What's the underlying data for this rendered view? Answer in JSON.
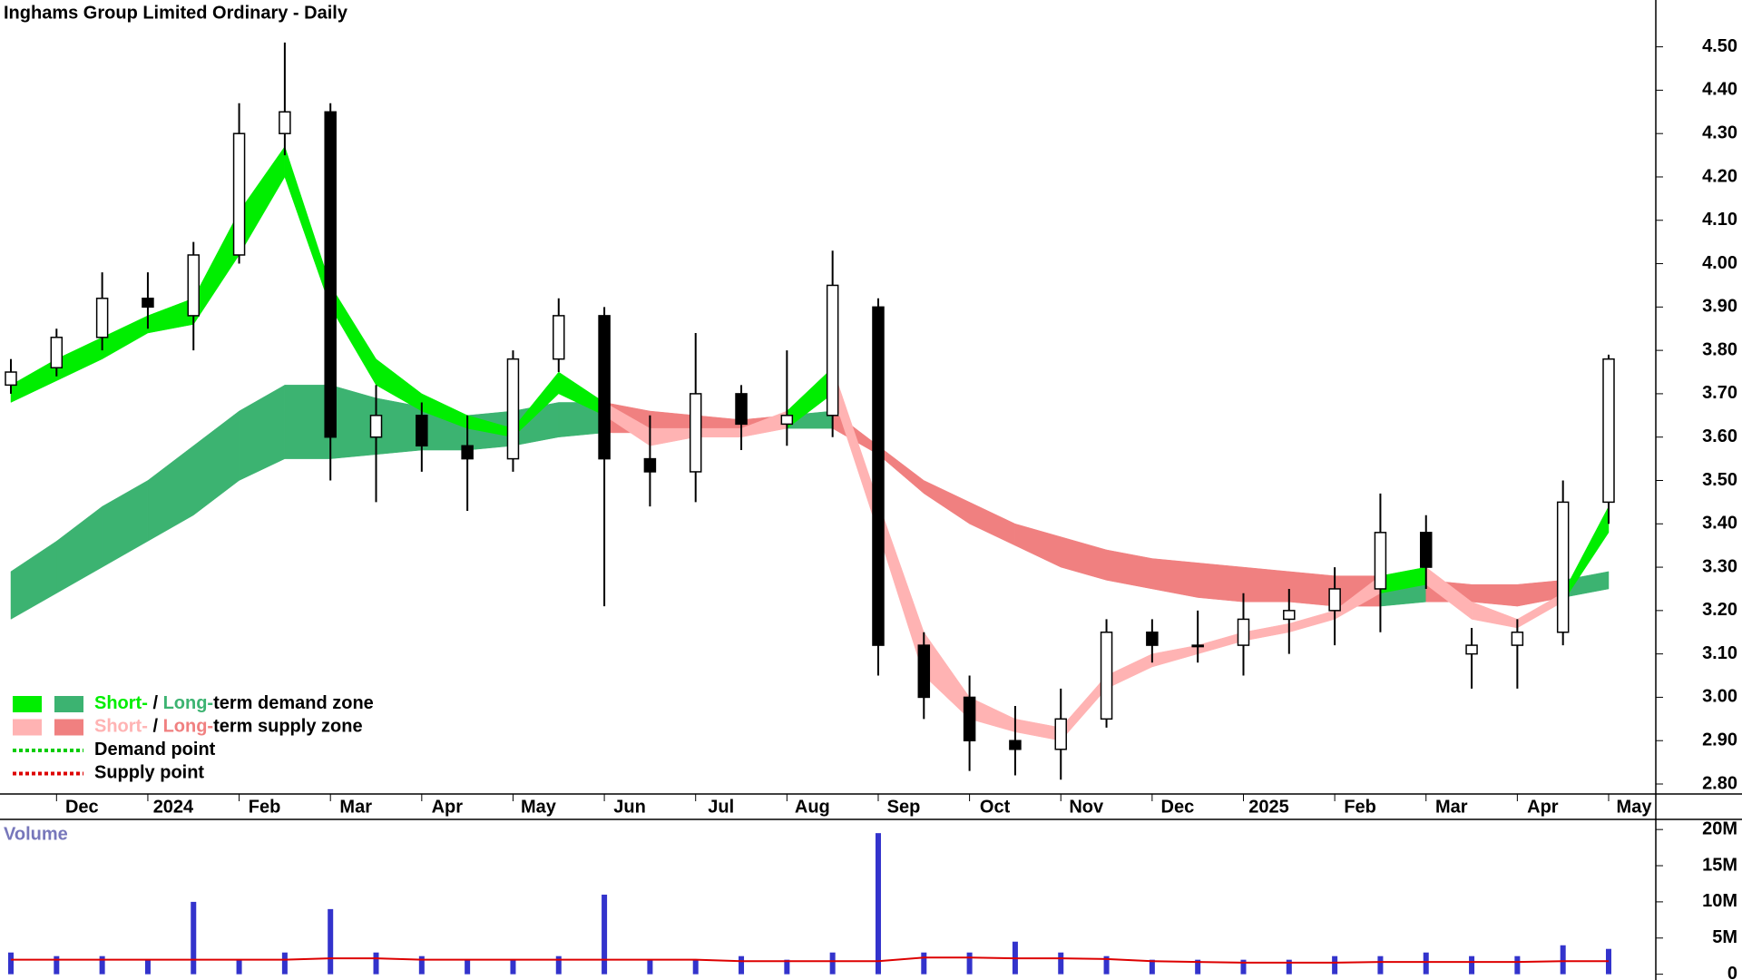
{
  "chart_data": [
    {
      "type": "candlestick",
      "title": "Inghams Group Limited Ordinary - Daily",
      "categories": [
        null,
        "Dec",
        null,
        "2024",
        null,
        "Feb",
        null,
        "Mar",
        null,
        "Apr",
        null,
        "May",
        null,
        "Jun",
        null,
        "Jul",
        null,
        "Aug",
        null,
        "Sep",
        null,
        "Oct",
        null,
        "Nov",
        null,
        "Dec",
        null,
        "2025",
        null,
        "Feb",
        null,
        "Mar",
        null,
        "Apr",
        null,
        "May"
      ],
      "open": [
        3.72,
        3.76,
        3.83,
        3.92,
        3.88,
        4.02,
        4.3,
        4.35,
        3.6,
        3.65,
        3.58,
        3.55,
        3.78,
        3.88,
        3.55,
        3.52,
        3.7,
        3.63,
        3.65,
        3.9,
        3.12,
        3.0,
        2.9,
        2.88,
        2.95,
        3.15,
        3.12,
        3.12,
        3.18,
        3.2,
        3.25,
        3.38,
        3.1,
        3.12,
        3.15,
        3.45
      ],
      "high": [
        3.78,
        3.85,
        3.98,
        3.98,
        4.05,
        4.37,
        4.51,
        4.37,
        3.72,
        3.68,
        3.65,
        3.8,
        3.92,
        3.9,
        3.65,
        3.84,
        3.72,
        3.8,
        4.03,
        3.92,
        3.15,
        3.05,
        2.98,
        3.02,
        3.18,
        3.18,
        3.2,
        3.24,
        3.25,
        3.3,
        3.47,
        3.42,
        3.16,
        3.18,
        3.5,
        3.79
      ],
      "low": [
        3.7,
        3.74,
        3.8,
        3.85,
        3.8,
        4.0,
        4.25,
        3.5,
        3.45,
        3.52,
        3.43,
        3.52,
        3.75,
        3.21,
        3.44,
        3.45,
        3.57,
        3.58,
        3.6,
        3.05,
        2.95,
        2.83,
        2.82,
        2.81,
        2.93,
        3.08,
        3.08,
        3.05,
        3.1,
        3.12,
        3.15,
        3.25,
        3.02,
        3.02,
        3.12,
        3.4
      ],
      "close": [
        3.75,
        3.83,
        3.92,
        3.9,
        4.02,
        4.3,
        4.35,
        3.6,
        3.65,
        3.58,
        3.55,
        3.78,
        3.88,
        3.55,
        3.52,
        3.7,
        3.63,
        3.65,
        3.95,
        3.12,
        3.0,
        2.9,
        2.88,
        2.95,
        3.15,
        3.12,
        3.12,
        3.18,
        3.2,
        3.25,
        3.38,
        3.3,
        3.12,
        3.15,
        3.45,
        3.78
      ],
      "bands": {
        "short": {
          "upper": [
            3.72,
            3.78,
            3.83,
            3.88,
            3.92,
            4.12,
            4.27,
            3.95,
            3.78,
            3.7,
            3.65,
            3.62,
            3.75,
            3.68,
            3.62,
            3.62,
            3.62,
            3.66,
            3.76,
            3.45,
            3.15,
            3.0,
            2.95,
            2.93,
            3.05,
            3.1,
            3.12,
            3.15,
            3.17,
            3.2,
            3.28,
            3.3,
            3.22,
            3.18,
            3.24,
            3.44
          ],
          "lower": [
            3.68,
            3.73,
            3.78,
            3.84,
            3.86,
            4.02,
            4.2,
            3.9,
            3.72,
            3.66,
            3.62,
            3.6,
            3.7,
            3.65,
            3.58,
            3.6,
            3.6,
            3.62,
            3.7,
            3.38,
            3.05,
            2.95,
            2.92,
            2.9,
            3.02,
            3.07,
            3.1,
            3.13,
            3.15,
            3.18,
            3.24,
            3.26,
            3.18,
            3.16,
            3.22,
            3.38
          ]
        },
        "long": {
          "upper": [
            3.29,
            3.36,
            3.44,
            3.5,
            3.58,
            3.66,
            3.72,
            3.72,
            3.69,
            3.67,
            3.65,
            3.66,
            3.68,
            3.68,
            3.66,
            3.65,
            3.64,
            3.65,
            3.66,
            3.58,
            3.5,
            3.45,
            3.4,
            3.37,
            3.34,
            3.32,
            3.31,
            3.3,
            3.29,
            3.28,
            3.28,
            3.27,
            3.26,
            3.26,
            3.27,
            3.29
          ],
          "lower": [
            3.18,
            3.24,
            3.3,
            3.36,
            3.42,
            3.5,
            3.55,
            3.55,
            3.56,
            3.57,
            3.57,
            3.58,
            3.6,
            3.61,
            3.61,
            3.61,
            3.62,
            3.62,
            3.62,
            3.56,
            3.47,
            3.4,
            3.35,
            3.3,
            3.27,
            3.25,
            3.23,
            3.22,
            3.22,
            3.21,
            3.21,
            3.22,
            3.22,
            3.21,
            3.23,
            3.25
          ]
        }
      },
      "colors": {
        "short_demand": "#00ee00",
        "long_demand": "#3cb371",
        "short_supply": "#ffb3b3",
        "long_supply": "#f08080",
        "demand_point": "#00cc00",
        "supply_point": "#dd0000",
        "candle": "#000000"
      },
      "ylim": [
        2.777,
        4.608
      ],
      "yticks": [
        {
          "value": 2.8,
          "label": "2.80"
        },
        {
          "value": 2.9,
          "label": "2.90"
        },
        {
          "value": 3.0,
          "label": "3.00"
        },
        {
          "value": 3.1,
          "label": "3.10"
        },
        {
          "value": 3.2,
          "label": "3.20"
        },
        {
          "value": 3.3,
          "label": "3.30"
        },
        {
          "value": 3.4,
          "label": "3.40"
        },
        {
          "value": 3.5,
          "label": "3.50"
        },
        {
          "value": 3.6,
          "label": "3.60"
        },
        {
          "value": 3.7,
          "label": "3.70"
        },
        {
          "value": 3.8,
          "label": "3.80"
        },
        {
          "value": 3.9,
          "label": "3.90"
        },
        {
          "value": 4.0,
          "label": "4.00"
        },
        {
          "value": 4.1,
          "label": "4.10"
        },
        {
          "value": 4.2,
          "label": "4.20"
        },
        {
          "value": 4.3,
          "label": "4.30"
        },
        {
          "value": 4.4,
          "label": "4.40"
        },
        {
          "value": 4.5,
          "label": "4.50"
        }
      ],
      "legend": [
        [
          "Short-",
          " / ",
          "Long-",
          "term demand zone"
        ],
        [
          "Short-",
          " / ",
          "Long-",
          "term supply zone"
        ],
        [
          "Demand point"
        ],
        [
          "Supply point"
        ]
      ]
    },
    {
      "type": "volume",
      "title": "Volume",
      "values": [
        3,
        2.5,
        2.5,
        2,
        10,
        2,
        3,
        9,
        3,
        2.5,
        2,
        2,
        2.5,
        11,
        2,
        2,
        2.5,
        2,
        3,
        19.5,
        3,
        3,
        4.5,
        3,
        2.5,
        2,
        2,
        2,
        2,
        2.5,
        2.5,
        3,
        2.5,
        2.5,
        4,
        3.5
      ],
      "average": [
        2,
        2,
        2,
        2,
        2,
        2,
        2,
        2.2,
        2.2,
        2,
        2,
        2,
        2,
        2,
        2,
        2,
        1.8,
        1.8,
        1.8,
        1.8,
        2.3,
        2.3,
        2.2,
        2.2,
        2.1,
        1.8,
        1.7,
        1.6,
        1.6,
        1.6,
        1.7,
        1.7,
        1.7,
        1.7,
        1.8,
        1.8
      ],
      "color": "#3333cc",
      "average_color": "#dd0000",
      "ylim": [
        -0.8,
        21.4
      ],
      "yticks": [
        0,
        {
          "value": 5,
          "label": "5M"
        },
        {
          "value": 10,
          "label": "10M"
        },
        {
          "value": 15,
          "label": "15M"
        },
        {
          "value": 20,
          "label": "20M"
        }
      ]
    }
  ]
}
